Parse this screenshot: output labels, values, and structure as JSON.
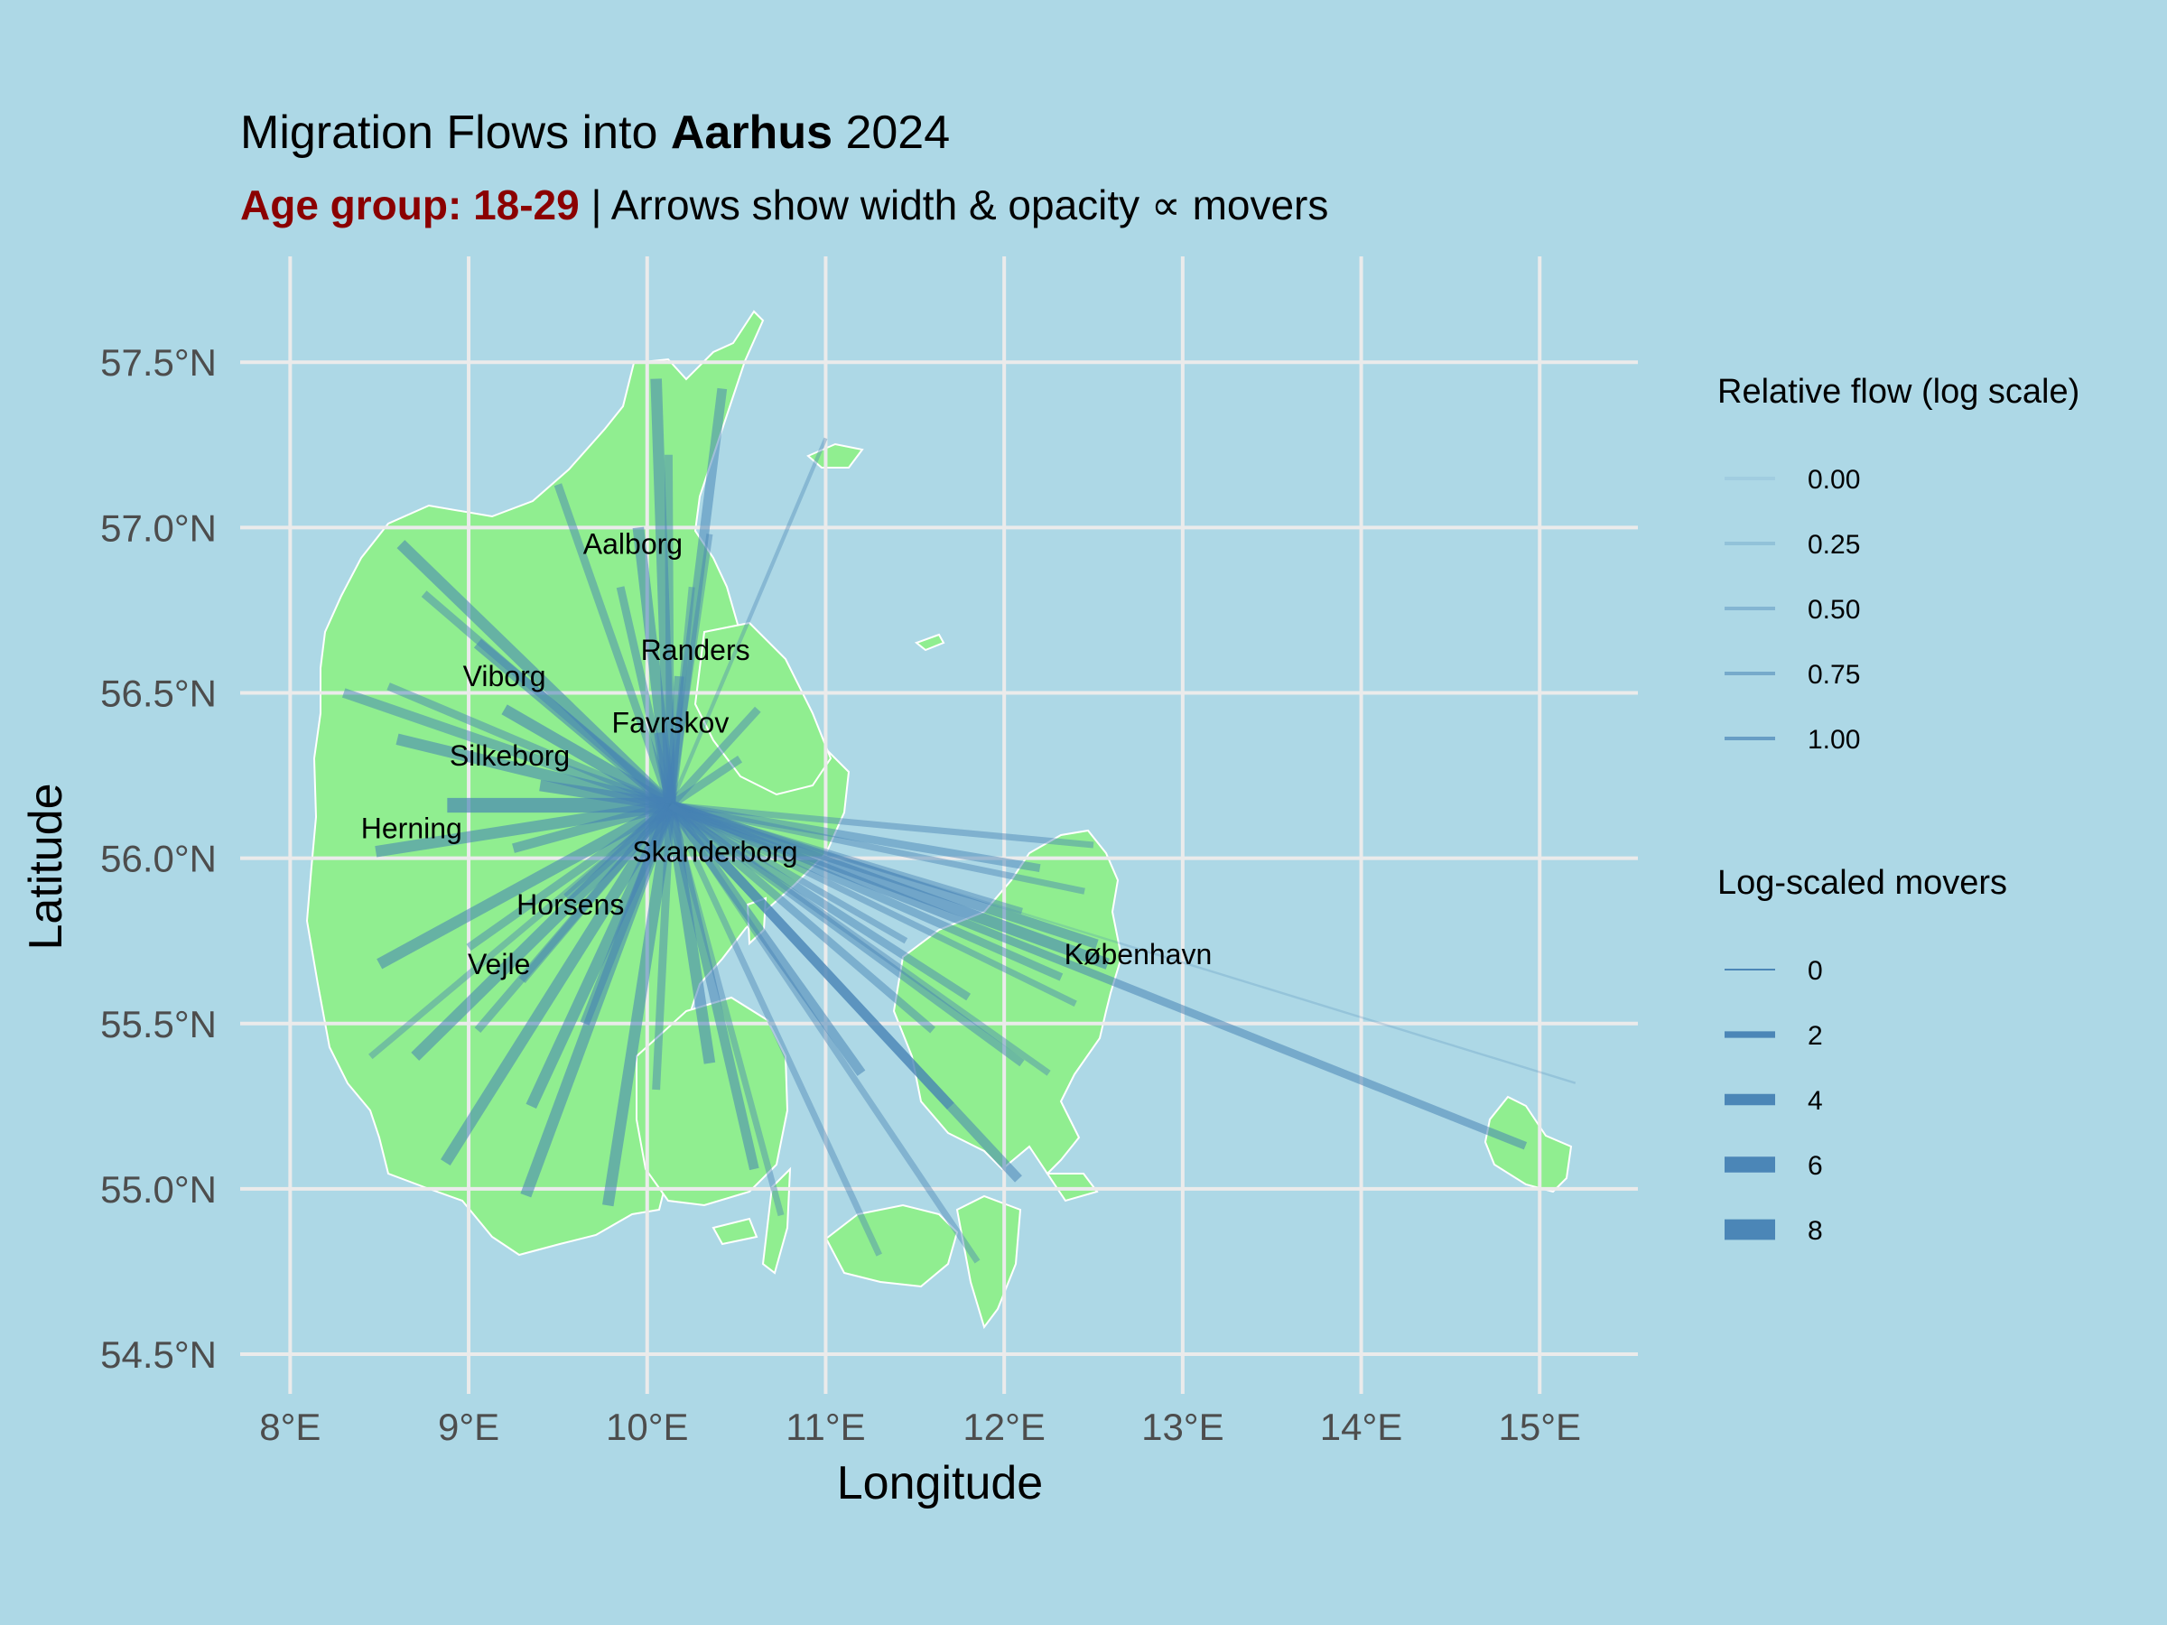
{
  "title": {
    "prefix": "Migration Flows into ",
    "bold": "Aarhus",
    "suffix": " 2024"
  },
  "subtitle": {
    "highlight": "Age group: 18-29",
    "rest": " | Arrows show width & opacity ∝ movers"
  },
  "colors": {
    "background": "#ADD8E6",
    "land": "#90EE90",
    "flow": "#4682B4",
    "highlight": "#8B0000",
    "grid": "#EBEBEB",
    "tick_text": "#4D4D4D"
  },
  "chart_data": {
    "type": "flow-map",
    "xlabel": "Longitude",
    "ylabel": "Latitude",
    "xlim": [
      7.72,
      15.55
    ],
    "ylim": [
      54.38,
      57.82
    ],
    "grid": true,
    "x_ticks": [
      {
        "value": 8,
        "label": "8°E"
      },
      {
        "value": 9,
        "label": "9°E"
      },
      {
        "value": 10,
        "label": "10°E"
      },
      {
        "value": 11,
        "label": "11°E"
      },
      {
        "value": 12,
        "label": "12°E"
      },
      {
        "value": 13,
        "label": "13°E"
      },
      {
        "value": 14,
        "label": "14°E"
      },
      {
        "value": 15,
        "label": "15°E"
      }
    ],
    "y_ticks": [
      {
        "value": 54.5,
        "label": "54.5°N"
      },
      {
        "value": 55.0,
        "label": "55.0°N"
      },
      {
        "value": 55.5,
        "label": "55.5°N"
      },
      {
        "value": 56.0,
        "label": "56.0°N"
      },
      {
        "value": 56.5,
        "label": "56.5°N"
      },
      {
        "value": 57.0,
        "label": "57.0°N"
      },
      {
        "value": 57.5,
        "label": "57.5°N"
      }
    ],
    "destination": {
      "name": "Aarhus",
      "lon": 10.13,
      "lat": 56.16
    },
    "city_labels": [
      {
        "name": "Aalborg",
        "lon": 9.92,
        "lat": 56.92
      },
      {
        "name": "Randers",
        "lon": 10.27,
        "lat": 56.6
      },
      {
        "name": "Viborg",
        "lon": 9.2,
        "lat": 56.52
      },
      {
        "name": "Favrskov",
        "lon": 10.13,
        "lat": 56.38
      },
      {
        "name": "Silkeborg",
        "lon": 9.23,
        "lat": 56.28
      },
      {
        "name": "Herning",
        "lon": 8.68,
        "lat": 56.06
      },
      {
        "name": "Skanderborg",
        "lon": 10.38,
        "lat": 55.99
      },
      {
        "name": "Horsens",
        "lon": 9.57,
        "lat": 55.83
      },
      {
        "name": "Vejle",
        "lon": 9.17,
        "lat": 55.65
      },
      {
        "name": "København",
        "lon": 12.75,
        "lat": 55.68
      }
    ],
    "flows": [
      {
        "lon": 10.05,
        "lat": 57.45,
        "movers": 6.0,
        "rel": 0.75
      },
      {
        "lon": 10.42,
        "lat": 57.42,
        "movers": 5.0,
        "rel": 0.7
      },
      {
        "lon": 10.12,
        "lat": 57.22,
        "movers": 4.0,
        "rel": 0.65
      },
      {
        "lon": 11.0,
        "lat": 57.27,
        "movers": 1.5,
        "rel": 0.45
      },
      {
        "lon": 9.5,
        "lat": 57.13,
        "movers": 4.0,
        "rel": 0.65
      },
      {
        "lon": 9.95,
        "lat": 57.0,
        "movers": 6.0,
        "rel": 0.8
      },
      {
        "lon": 10.35,
        "lat": 56.98,
        "movers": 3.0,
        "rel": 0.6
      },
      {
        "lon": 8.62,
        "lat": 56.95,
        "movers": 6.0,
        "rel": 0.8
      },
      {
        "lon": 8.75,
        "lat": 56.8,
        "movers": 4.0,
        "rel": 0.65
      },
      {
        "lon": 9.85,
        "lat": 56.82,
        "movers": 4.0,
        "rel": 0.7
      },
      {
        "lon": 10.25,
        "lat": 56.82,
        "movers": 3.0,
        "rel": 0.6
      },
      {
        "lon": 9.05,
        "lat": 56.65,
        "movers": 6.0,
        "rel": 0.8
      },
      {
        "lon": 10.18,
        "lat": 56.55,
        "movers": 5.0,
        "rel": 0.75
      },
      {
        "lon": 8.3,
        "lat": 56.5,
        "movers": 5.0,
        "rel": 0.7
      },
      {
        "lon": 8.55,
        "lat": 56.52,
        "movers": 4.0,
        "rel": 0.65
      },
      {
        "lon": 9.2,
        "lat": 56.45,
        "movers": 6.0,
        "rel": 0.85
      },
      {
        "lon": 10.62,
        "lat": 56.45,
        "movers": 4.0,
        "rel": 0.65
      },
      {
        "lon": 8.6,
        "lat": 56.36,
        "movers": 6.0,
        "rel": 0.8
      },
      {
        "lon": 10.07,
        "lat": 56.38,
        "movers": 6.0,
        "rel": 0.85
      },
      {
        "lon": 10.52,
        "lat": 56.3,
        "movers": 4.0,
        "rel": 0.65
      },
      {
        "lon": 9.4,
        "lat": 56.22,
        "movers": 6.0,
        "rel": 0.85
      },
      {
        "lon": 8.88,
        "lat": 56.16,
        "movers": 8.0,
        "rel": 1.0
      },
      {
        "lon": 8.48,
        "lat": 56.02,
        "movers": 6.0,
        "rel": 0.8
      },
      {
        "lon": 9.25,
        "lat": 56.03,
        "movers": 5.0,
        "rel": 0.75
      },
      {
        "lon": 12.5,
        "lat": 56.04,
        "movers": 3.0,
        "rel": 0.6
      },
      {
        "lon": 12.2,
        "lat": 55.97,
        "movers": 4.0,
        "rel": 0.65
      },
      {
        "lon": 12.45,
        "lat": 55.9,
        "movers": 3.0,
        "rel": 0.6
      },
      {
        "lon": 12.1,
        "lat": 55.84,
        "movers": 3.0,
        "rel": 0.6
      },
      {
        "lon": 12.52,
        "lat": 55.74,
        "movers": 5.0,
        "rel": 0.75
      },
      {
        "lon": 12.58,
        "lat": 55.68,
        "movers": 6.0,
        "rel": 0.85
      },
      {
        "lon": 12.32,
        "lat": 55.64,
        "movers": 4.0,
        "rel": 0.65
      },
      {
        "lon": 12.4,
        "lat": 55.56,
        "movers": 3.0,
        "rel": 0.6
      },
      {
        "lon": 14.92,
        "lat": 55.13,
        "movers": 4.0,
        "rel": 0.75
      },
      {
        "lon": 15.2,
        "lat": 55.32,
        "movers": 0.5,
        "rel": 0.2
      },
      {
        "lon": 9.55,
        "lat": 55.88,
        "movers": 5.0,
        "rel": 0.7
      },
      {
        "lon": 9.0,
        "lat": 55.73,
        "movers": 4.0,
        "rel": 0.65
      },
      {
        "lon": 8.5,
        "lat": 55.68,
        "movers": 6.0,
        "rel": 0.8
      },
      {
        "lon": 9.3,
        "lat": 55.63,
        "movers": 4.0,
        "rel": 0.65
      },
      {
        "lon": 8.45,
        "lat": 55.4,
        "movers": 3.0,
        "rel": 0.55
      },
      {
        "lon": 8.7,
        "lat": 55.4,
        "movers": 6.0,
        "rel": 0.8
      },
      {
        "lon": 9.05,
        "lat": 55.48,
        "movers": 4.0,
        "rel": 0.65
      },
      {
        "lon": 8.87,
        "lat": 55.08,
        "movers": 6.0,
        "rel": 0.8
      },
      {
        "lon": 9.35,
        "lat": 55.25,
        "movers": 6.0,
        "rel": 0.8
      },
      {
        "lon": 9.32,
        "lat": 54.98,
        "movers": 6.0,
        "rel": 0.8
      },
      {
        "lon": 9.78,
        "lat": 54.95,
        "movers": 6.0,
        "rel": 0.8
      },
      {
        "lon": 9.65,
        "lat": 55.5,
        "movers": 5.0,
        "rel": 0.75
      },
      {
        "lon": 10.05,
        "lat": 55.3,
        "movers": 4.0,
        "rel": 0.65
      },
      {
        "lon": 10.35,
        "lat": 55.38,
        "movers": 6.0,
        "rel": 0.8
      },
      {
        "lon": 10.6,
        "lat": 55.06,
        "movers": 5.0,
        "rel": 0.75
      },
      {
        "lon": 10.75,
        "lat": 54.92,
        "movers": 3.0,
        "rel": 0.55
      },
      {
        "lon": 11.3,
        "lat": 54.8,
        "movers": 3.0,
        "rel": 0.55
      },
      {
        "lon": 11.85,
        "lat": 54.78,
        "movers": 3.0,
        "rel": 0.55
      },
      {
        "lon": 11.7,
        "lat": 55.25,
        "movers": 5.0,
        "rel": 0.75
      },
      {
        "lon": 12.08,
        "lat": 55.03,
        "movers": 5.0,
        "rel": 0.75
      },
      {
        "lon": 11.2,
        "lat": 55.35,
        "movers": 5.0,
        "rel": 0.75
      },
      {
        "lon": 12.1,
        "lat": 55.38,
        "movers": 4.0,
        "rel": 0.65
      },
      {
        "lon": 11.8,
        "lat": 55.58,
        "movers": 4.0,
        "rel": 0.65
      },
      {
        "lon": 11.6,
        "lat": 55.48,
        "movers": 4.0,
        "rel": 0.65
      },
      {
        "lon": 11.45,
        "lat": 55.75,
        "movers": 3.0,
        "rel": 0.6
      },
      {
        "lon": 12.25,
        "lat": 55.35,
        "movers": 3.0,
        "rel": 0.55
      }
    ],
    "legends": [
      {
        "title": "Relative flow (log scale)",
        "aesthetic": "alpha",
        "entries": [
          {
            "value": 0.0,
            "label": "0.00"
          },
          {
            "value": 0.25,
            "label": "0.25"
          },
          {
            "value": 0.5,
            "label": "0.50"
          },
          {
            "value": 0.75,
            "label": "0.75"
          },
          {
            "value": 1.0,
            "label": "1.00"
          }
        ]
      },
      {
        "title": "Log-scaled movers",
        "aesthetic": "linewidth",
        "entries": [
          {
            "value": 0,
            "label": "0"
          },
          {
            "value": 2,
            "label": "2"
          },
          {
            "value": 4,
            "label": "4"
          },
          {
            "value": 6,
            "label": "6"
          },
          {
            "value": 8,
            "label": "8"
          }
        ]
      }
    ]
  }
}
